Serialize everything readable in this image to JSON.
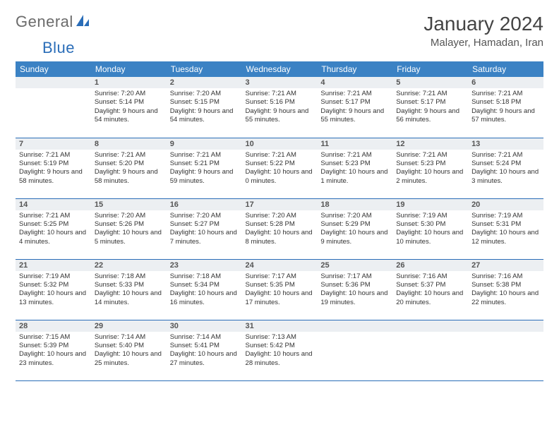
{
  "brand": {
    "name_a": "General",
    "name_b": "Blue"
  },
  "title": "January 2024",
  "location": "Malayer, Hamadan, Iran",
  "header_color": "#3b82c4",
  "border_color": "#2a6db8",
  "daynum_bg": "#eceff2",
  "weekdays": [
    "Sunday",
    "Monday",
    "Tuesday",
    "Wednesday",
    "Thursday",
    "Friday",
    "Saturday"
  ],
  "first_weekday_index": 1,
  "days_in_month": 31,
  "days": {
    "1": {
      "sr": "7:20 AM",
      "ss": "5:14 PM",
      "dl": "9 hours and 54 minutes."
    },
    "2": {
      "sr": "7:20 AM",
      "ss": "5:15 PM",
      "dl": "9 hours and 54 minutes."
    },
    "3": {
      "sr": "7:21 AM",
      "ss": "5:16 PM",
      "dl": "9 hours and 55 minutes."
    },
    "4": {
      "sr": "7:21 AM",
      "ss": "5:17 PM",
      "dl": "9 hours and 55 minutes."
    },
    "5": {
      "sr": "7:21 AM",
      "ss": "5:17 PM",
      "dl": "9 hours and 56 minutes."
    },
    "6": {
      "sr": "7:21 AM",
      "ss": "5:18 PM",
      "dl": "9 hours and 57 minutes."
    },
    "7": {
      "sr": "7:21 AM",
      "ss": "5:19 PM",
      "dl": "9 hours and 58 minutes."
    },
    "8": {
      "sr": "7:21 AM",
      "ss": "5:20 PM",
      "dl": "9 hours and 58 minutes."
    },
    "9": {
      "sr": "7:21 AM",
      "ss": "5:21 PM",
      "dl": "9 hours and 59 minutes."
    },
    "10": {
      "sr": "7:21 AM",
      "ss": "5:22 PM",
      "dl": "10 hours and 0 minutes."
    },
    "11": {
      "sr": "7:21 AM",
      "ss": "5:23 PM",
      "dl": "10 hours and 1 minute."
    },
    "12": {
      "sr": "7:21 AM",
      "ss": "5:23 PM",
      "dl": "10 hours and 2 minutes."
    },
    "13": {
      "sr": "7:21 AM",
      "ss": "5:24 PM",
      "dl": "10 hours and 3 minutes."
    },
    "14": {
      "sr": "7:21 AM",
      "ss": "5:25 PM",
      "dl": "10 hours and 4 minutes."
    },
    "15": {
      "sr": "7:20 AM",
      "ss": "5:26 PM",
      "dl": "10 hours and 5 minutes."
    },
    "16": {
      "sr": "7:20 AM",
      "ss": "5:27 PM",
      "dl": "10 hours and 7 minutes."
    },
    "17": {
      "sr": "7:20 AM",
      "ss": "5:28 PM",
      "dl": "10 hours and 8 minutes."
    },
    "18": {
      "sr": "7:20 AM",
      "ss": "5:29 PM",
      "dl": "10 hours and 9 minutes."
    },
    "19": {
      "sr": "7:19 AM",
      "ss": "5:30 PM",
      "dl": "10 hours and 10 minutes."
    },
    "20": {
      "sr": "7:19 AM",
      "ss": "5:31 PM",
      "dl": "10 hours and 12 minutes."
    },
    "21": {
      "sr": "7:19 AM",
      "ss": "5:32 PM",
      "dl": "10 hours and 13 minutes."
    },
    "22": {
      "sr": "7:18 AM",
      "ss": "5:33 PM",
      "dl": "10 hours and 14 minutes."
    },
    "23": {
      "sr": "7:18 AM",
      "ss": "5:34 PM",
      "dl": "10 hours and 16 minutes."
    },
    "24": {
      "sr": "7:17 AM",
      "ss": "5:35 PM",
      "dl": "10 hours and 17 minutes."
    },
    "25": {
      "sr": "7:17 AM",
      "ss": "5:36 PM",
      "dl": "10 hours and 19 minutes."
    },
    "26": {
      "sr": "7:16 AM",
      "ss": "5:37 PM",
      "dl": "10 hours and 20 minutes."
    },
    "27": {
      "sr": "7:16 AM",
      "ss": "5:38 PM",
      "dl": "10 hours and 22 minutes."
    },
    "28": {
      "sr": "7:15 AM",
      "ss": "5:39 PM",
      "dl": "10 hours and 23 minutes."
    },
    "29": {
      "sr": "7:14 AM",
      "ss": "5:40 PM",
      "dl": "10 hours and 25 minutes."
    },
    "30": {
      "sr": "7:14 AM",
      "ss": "5:41 PM",
      "dl": "10 hours and 27 minutes."
    },
    "31": {
      "sr": "7:13 AM",
      "ss": "5:42 PM",
      "dl": "10 hours and 28 minutes."
    }
  },
  "labels": {
    "sunrise": "Sunrise:",
    "sunset": "Sunset:",
    "daylight": "Daylight:"
  }
}
